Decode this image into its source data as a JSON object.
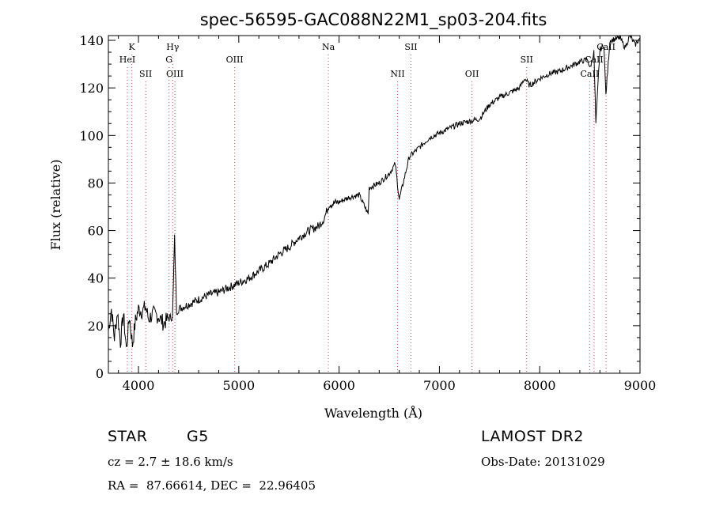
{
  "chart_data": {
    "type": "line",
    "title": "spec-56595-GAC088N22M1_sp03-204.fits",
    "xlabel": "Wavelength (Å)",
    "ylabel": "Flux (relative)",
    "xlim": [
      3700,
      9000
    ],
    "ylim": [
      0,
      142
    ],
    "xticks": [
      4000,
      5000,
      6000,
      7000,
      8000,
      9000
    ],
    "yticks": [
      0,
      20,
      40,
      60,
      80,
      100,
      120,
      140
    ],
    "grid": false,
    "series": [
      {
        "x": [
          3700,
          3730,
          3760,
          3790,
          3820,
          3850,
          3880,
          3910,
          3940,
          3970,
          4000,
          4040,
          4070,
          4100,
          4150,
          4200,
          4250,
          4300,
          4340,
          4360,
          4380,
          4400,
          4500,
          4600,
          4700,
          4800,
          4900,
          5000,
          5100,
          5200,
          5300,
          5400,
          5500,
          5600,
          5700,
          5800,
          5850,
          5900,
          6000,
          6100,
          6200,
          6290,
          6300,
          6400,
          6500,
          6560,
          6600,
          6700,
          6800,
          6900,
          7000,
          7100,
          7200,
          7300,
          7400,
          7450,
          7500,
          7600,
          7700,
          7800,
          7850,
          7900,
          8000,
          8100,
          8200,
          8300,
          8400,
          8480,
          8500,
          8540,
          8560,
          8600,
          8640,
          8660,
          8700,
          8800,
          8850,
          8900,
          8950,
          9000
        ],
        "y": [
          18,
          27,
          15,
          26,
          13,
          25,
          10,
          24,
          12,
          22,
          27,
          26,
          28,
          23,
          25,
          24,
          21,
          23,
          24,
          57,
          26,
          27,
          29,
          31,
          33,
          34,
          36,
          38,
          40,
          43,
          46,
          50,
          53,
          57,
          60,
          62,
          65,
          71,
          72,
          74,
          75,
          67,
          78,
          80,
          84,
          88,
          73,
          91,
          95,
          99,
          101,
          103,
          105,
          106,
          107,
          110,
          113,
          116,
          118,
          120,
          124,
          121,
          124,
          126,
          127,
          129,
          131,
          132,
          128,
          135,
          105,
          136,
          138,
          117,
          140,
          141,
          137,
          142,
          138,
          141
        ]
      }
    ],
    "lines": [
      {
        "x": 3889,
        "label": "HeI",
        "row": 2
      },
      {
        "x": 3934,
        "label": "K",
        "row": 1
      },
      {
        "x": 4072,
        "label": "SII",
        "row": 3
      },
      {
        "x": 4305,
        "label": "G",
        "row": 2
      },
      {
        "x": 4341,
        "label": "Hγ",
        "row": 1
      },
      {
        "x": 4363,
        "label": "OIII",
        "row": 3
      },
      {
        "x": 4959,
        "label": "OIII",
        "row": 2
      },
      {
        "x": 5893,
        "label": "Na",
        "row": 1
      },
      {
        "x": 6583,
        "label": "NII",
        "row": 3
      },
      {
        "x": 6717,
        "label": "SII",
        "row": 1
      },
      {
        "x": 7325,
        "label": "OII",
        "row": 3
      },
      {
        "x": 7870,
        "label": "SII",
        "row": 2
      },
      {
        "x": 8498,
        "label": "CaII",
        "row": 3
      },
      {
        "x": 8542,
        "label": "CaII",
        "row": 2
      },
      {
        "x": 8662,
        "label": "CaII",
        "row": 1
      }
    ],
    "colors": {
      "spectrum": "#000000",
      "lines": "#cc4444",
      "axes": "#000000"
    }
  },
  "info": {
    "object_class": "STAR",
    "subclass": "G5",
    "survey": "LAMOST DR2",
    "redshift": "cz = 2.7 ± 18.6 km/s",
    "obs_date": "Obs-Date: 20131029",
    "coords": "RA =  87.66614, DEC =  22.96405"
  }
}
